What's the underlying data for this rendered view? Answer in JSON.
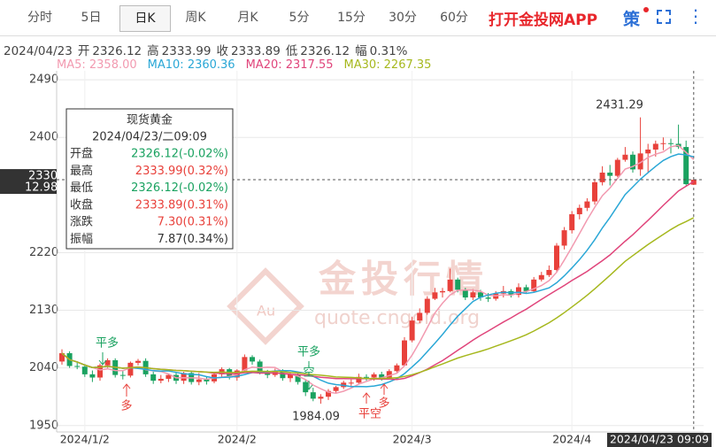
{
  "tabs": [
    "分时",
    "5日",
    "日K",
    "周K",
    "月K",
    "5分",
    "15分",
    "30分",
    "60分"
  ],
  "app_link": "打开金投网APP",
  "icon_label": "策",
  "info": {
    "date": "2024/04/23",
    "items": [
      {
        "label": "开",
        "value": "2326.12"
      },
      {
        "label": "高",
        "value": "2333.99"
      },
      {
        "label": "收",
        "value": "2333.89"
      },
      {
        "label": "低",
        "value": "2326.12"
      },
      {
        "label": "幅",
        "value": "0.31%"
      }
    ]
  },
  "watermark": {
    "title": "金投行情",
    "url": "quote.cngold.org",
    "badge": "Au"
  },
  "tooltip": {
    "title": "现货黄金",
    "date": "2024/04/23/二09:09",
    "rows": [
      {
        "label": "开盘",
        "value": "2326.12(-0.02%)",
        "color": "#1aa260"
      },
      {
        "label": "最高",
        "value": "2333.99(0.32%)",
        "color": "#e8413b"
      },
      {
        "label": "最低",
        "value": "2326.12(-0.02%)",
        "color": "#1aa260"
      },
      {
        "label": "收盘",
        "value": "2333.89(0.31%)",
        "color": "#e8413b"
      },
      {
        "label": "涨跌",
        "value": "7.30(0.31%)",
        "color": "#e8413b"
      },
      {
        "label": "振幅",
        "value": "7.87(0.34%)",
        "color": "#333333"
      }
    ]
  },
  "annotations": {
    "high": "2431.29",
    "low": "1984.09",
    "signals": [
      "平多",
      "多",
      "平多",
      "空",
      "平空",
      "多"
    ]
  },
  "chart_data": {
    "type": "candlestick",
    "categories": [
      null,
      null,
      null,
      "2024/1/2",
      null,
      null,
      null,
      null,
      null,
      null,
      null,
      null,
      null,
      null,
      null,
      null,
      null,
      null,
      null,
      null,
      null,
      null,
      null,
      "2024/2",
      null,
      null,
      null,
      null,
      null,
      null,
      null,
      null,
      null,
      null,
      null,
      null,
      null,
      null,
      null,
      null,
      null,
      null,
      null,
      null,
      null,
      null,
      "2024/3",
      null,
      null,
      null,
      null,
      null,
      null,
      null,
      null,
      null,
      null,
      null,
      null,
      null,
      null,
      null,
      null,
      null,
      null,
      null,
      null,
      "2024/4",
      null,
      null,
      null,
      null,
      null,
      null,
      null,
      null,
      null,
      null,
      null,
      null,
      null,
      null,
      null,
      "2024/04/23 09:09"
    ],
    "open": [
      2050,
      2063,
      2043,
      2042,
      2030,
      2025,
      2044,
      2052,
      2029,
      2028,
      2048,
      2051,
      2030,
      2020,
      2023,
      2029,
      2020,
      2032,
      2018,
      2022,
      2019,
      2030,
      2038,
      2025,
      2036,
      2057,
      2050,
      2033,
      2029,
      2035,
      2024,
      2030,
      2018,
      2002,
      1992,
      1995,
      2004,
      2010,
      2017,
      2017,
      2026,
      2025,
      2030,
      2024,
      2035,
      2044,
      2083,
      2114,
      2126,
      2148,
      2158,
      2160,
      2178,
      2162,
      2150,
      2158,
      2150,
      2148,
      2156,
      2160,
      2154,
      2166,
      2160,
      2178,
      2185,
      2193,
      2231,
      2255,
      2280,
      2290,
      2300,
      2330,
      2345,
      2340,
      2365,
      2373,
      2350,
      2375,
      2381,
      2390,
      2391,
      2390,
      2385,
      2326.12
    ],
    "high": [
      2069,
      2066,
      2050,
      2046,
      2036,
      2047,
      2055,
      2055,
      2036,
      2050,
      2054,
      2055,
      2034,
      2029,
      2031,
      2034,
      2034,
      2036,
      2032,
      2026,
      2033,
      2041,
      2040,
      2038,
      2061,
      2060,
      2053,
      2037,
      2039,
      2038,
      2033,
      2034,
      2022,
      2009,
      1999,
      2007,
      2012,
      2020,
      2022,
      2031,
      2030,
      2033,
      2034,
      2038,
      2047,
      2088,
      2120,
      2133,
      2152,
      2165,
      2165,
      2195,
      2181,
      2165,
      2163,
      2162,
      2157,
      2160,
      2168,
      2163,
      2172,
      2170,
      2182,
      2190,
      2200,
      2235,
      2260,
      2285,
      2295,
      2305,
      2335,
      2355,
      2357,
      2368,
      2385,
      2378,
      2431.29,
      2390,
      2395,
      2400,
      2398,
      2420,
      2395,
      2333.99
    ],
    "low": [
      2045,
      2040,
      2038,
      2026,
      2018,
      2020,
      2040,
      2025,
      2022,
      2025,
      2044,
      2026,
      2015,
      2016,
      2018,
      2015,
      2015,
      2014,
      2013,
      2014,
      2016,
      2026,
      2022,
      2020,
      2033,
      2045,
      2030,
      2024,
      2026,
      2020,
      2018,
      2014,
      1996,
      1988,
      1984.09,
      1990,
      2000,
      2007,
      2012,
      2015,
      2020,
      2020,
      2020,
      2022,
      2033,
      2043,
      2080,
      2110,
      2123,
      2146,
      2150,
      2158,
      2158,
      2146,
      2146,
      2145,
      2143,
      2145,
      2150,
      2150,
      2150,
      2156,
      2158,
      2175,
      2182,
      2190,
      2225,
      2250,
      2272,
      2285,
      2295,
      2325,
      2325,
      2338,
      2362,
      2345,
      2340,
      2345,
      2370,
      2380,
      2375,
      2382,
      2325,
      2326.12
    ],
    "close": [
      2063,
      2043,
      2042,
      2030,
      2025,
      2044,
      2052,
      2029,
      2028,
      2048,
      2051,
      2030,
      2020,
      2023,
      2029,
      2020,
      2032,
      2018,
      2022,
      2019,
      2030,
      2038,
      2025,
      2036,
      2057,
      2050,
      2033,
      2029,
      2035,
      2024,
      2030,
      2018,
      2002,
      1992,
      1995,
      2004,
      2010,
      2017,
      2017,
      2026,
      2025,
      2030,
      2024,
      2035,
      2044,
      2083,
      2114,
      2126,
      2148,
      2158,
      2160,
      2178,
      2162,
      2150,
      2158,
      2150,
      2148,
      2156,
      2160,
      2154,
      2166,
      2160,
      2178,
      2185,
      2193,
      2231,
      2255,
      2280,
      2290,
      2300,
      2330,
      2345,
      2340,
      2365,
      2373,
      2350,
      2375,
      2381,
      2390,
      2391,
      2390,
      2385,
      2327,
      2333.89
    ],
    "up_color": "#e8413b",
    "down_color": "#1aa260",
    "moving_averages": [
      {
        "name": "MA5: 2358.00",
        "color": "#f29ab0"
      },
      {
        "name": "MA10: 2360.36",
        "color": "#2aa7d6"
      },
      {
        "name": "MA20: 2317.55",
        "color": "#e0457b"
      },
      {
        "name": "MA30: 2267.35",
        "color": "#a6b81e"
      }
    ],
    "price_tag": [
      "2330.",
      "12.98"
    ],
    "ylim": [
      1940,
      2504
    ],
    "yticks": [
      1950,
      2040,
      2130,
      2220,
      2400,
      2490
    ],
    "grid": true
  }
}
